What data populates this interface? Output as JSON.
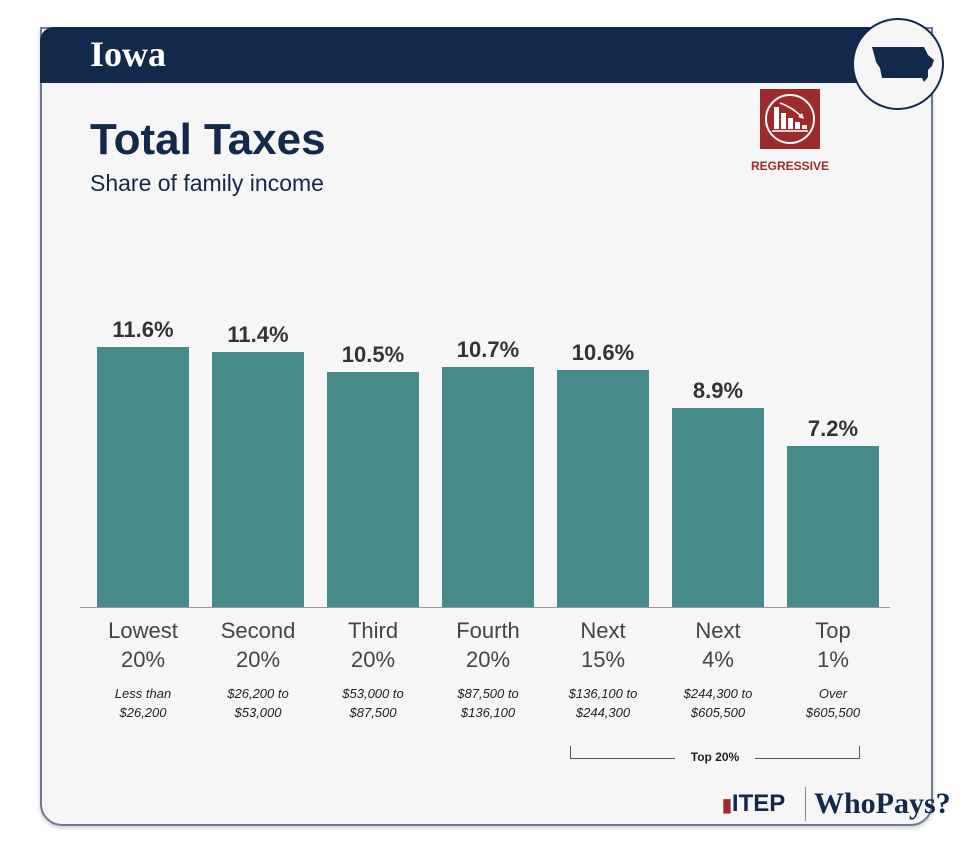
{
  "header": {
    "state": "Iowa",
    "badge_label": "REGRESSIVE",
    "badge_icon": "declining-bars-icon",
    "map_icon": "iowa-map-icon"
  },
  "colors": {
    "navy": "#12294b",
    "bar": "#478a8a",
    "regressive": "#9e2b2b"
  },
  "chart_data": {
    "type": "bar",
    "title": "Total Taxes",
    "subtitle": "Share of family income",
    "categories": [
      [
        "Lowest",
        "20%"
      ],
      [
        "Second",
        "20%"
      ],
      [
        "Third",
        "20%"
      ],
      [
        "Fourth",
        "20%"
      ],
      [
        "Next",
        "15%"
      ],
      [
        "Next",
        "4%"
      ],
      [
        "Top",
        "1%"
      ]
    ],
    "ranges": [
      [
        "Less than",
        "$26,200"
      ],
      [
        "$26,200 to",
        "$53,000"
      ],
      [
        "$53,000 to",
        "$87,500"
      ],
      [
        "$87,500 to",
        "$136,100"
      ],
      [
        "$136,100 to",
        "$244,300"
      ],
      [
        "$244,300 to",
        "$605,500"
      ],
      [
        "Over",
        "$605,500"
      ]
    ],
    "values": [
      11.6,
      11.4,
      10.5,
      10.7,
      10.6,
      8.9,
      7.2
    ],
    "labels": [
      "11.6%",
      "11.4%",
      "10.5%",
      "10.7%",
      "10.6%",
      "8.9%",
      "7.2%"
    ],
    "grid": false,
    "group_annotation": "Top 20%"
  },
  "footer": {
    "itep": "ITEP",
    "whopays": "WhoPays?"
  }
}
